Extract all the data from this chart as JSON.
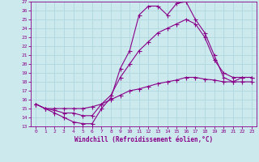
{
  "xlabel": "Windchill (Refroidissement éolien,°C)",
  "xlim": [
    -0.5,
    23.5
  ],
  "ylim": [
    13,
    27
  ],
  "yticks": [
    13,
    14,
    15,
    16,
    17,
    18,
    19,
    20,
    21,
    22,
    23,
    24,
    25,
    26,
    27
  ],
  "xticks": [
    0,
    1,
    2,
    3,
    4,
    5,
    6,
    7,
    8,
    9,
    10,
    11,
    12,
    13,
    14,
    15,
    16,
    17,
    18,
    19,
    20,
    21,
    22,
    23
  ],
  "bg_color": "#cce9ee",
  "line_color": "#880088",
  "grid_color": "#b0d8df",
  "curve1_x": [
    0,
    1,
    2,
    3,
    4,
    5,
    6,
    7,
    8,
    9,
    10,
    11,
    12,
    13,
    14,
    15,
    16,
    17,
    18,
    19,
    20,
    21,
    22,
    23
  ],
  "curve1_y": [
    15.5,
    15.0,
    14.5,
    14.0,
    13.5,
    13.3,
    13.3,
    15.0,
    16.2,
    19.5,
    21.5,
    25.5,
    26.5,
    26.5,
    25.5,
    26.8,
    27.0,
    25.0,
    23.5,
    21.0,
    18.5,
    18.0,
    18.5,
    18.5
  ],
  "curve2_x": [
    0,
    1,
    2,
    3,
    4,
    5,
    6,
    7,
    8,
    9,
    10,
    11,
    12,
    13,
    14,
    15,
    16,
    17,
    18,
    19,
    20,
    21,
    22,
    23
  ],
  "curve2_y": [
    15.5,
    15.0,
    14.8,
    14.5,
    14.5,
    14.2,
    14.2,
    15.5,
    16.5,
    18.5,
    20.0,
    21.5,
    22.5,
    23.5,
    24.0,
    24.5,
    25.0,
    24.5,
    23.0,
    20.5,
    19.0,
    18.5,
    18.5,
    18.5
  ],
  "curve3_x": [
    0,
    1,
    2,
    3,
    4,
    5,
    6,
    7,
    8,
    9,
    10,
    11,
    12,
    13,
    14,
    15,
    16,
    17,
    18,
    19,
    20,
    21,
    22,
    23
  ],
  "curve3_y": [
    15.5,
    15.0,
    15.0,
    15.0,
    15.0,
    15.0,
    15.2,
    15.5,
    16.0,
    16.5,
    17.0,
    17.2,
    17.5,
    17.8,
    18.0,
    18.2,
    18.5,
    18.5,
    18.3,
    18.2,
    18.0,
    18.0,
    18.0,
    18.0
  ]
}
